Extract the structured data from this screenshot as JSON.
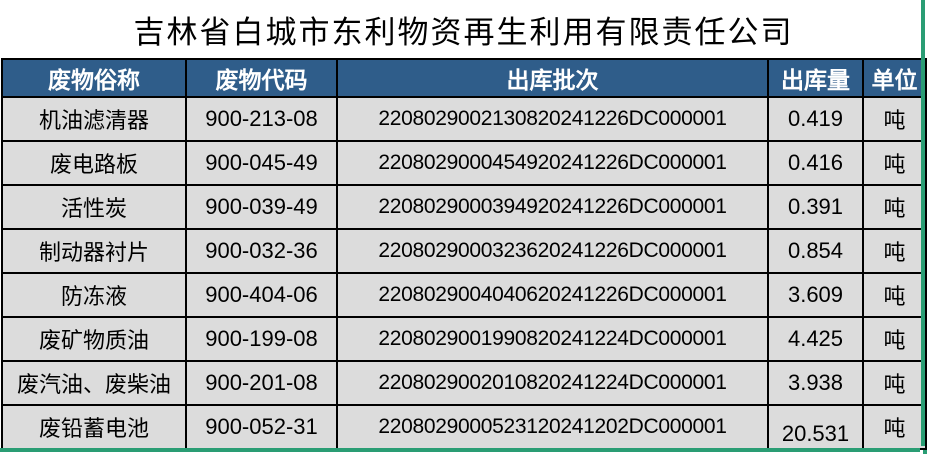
{
  "title": "吉林省白城市东利物资再生利用有限责任公司",
  "table": {
    "headers": [
      "废物俗称",
      "废物代码",
      "出库批次",
      "出库量",
      "单位"
    ],
    "rows": [
      [
        "机油滤清器",
        "900-213-08",
        "2208029002130820241226DC000001",
        "0.419",
        "吨"
      ],
      [
        "废电路板",
        "900-045-49",
        "2208029000454920241226DC000001",
        "0.416",
        "吨"
      ],
      [
        "活性炭",
        "900-039-49",
        "2208029000394920241226DC000001",
        "0.391",
        "吨"
      ],
      [
        "制动器衬片",
        "900-032-36",
        "2208029000323620241226DC000001",
        "0.854",
        "吨"
      ],
      [
        "防冻液",
        "900-404-06",
        "2208029004040620241226DC000001",
        "3.609",
        "吨"
      ],
      [
        "废矿物质油",
        "900-199-08",
        "2208029001990820241224DC000001",
        "4.425",
        "吨"
      ],
      [
        "废汽油、废柴油",
        "900-201-08",
        "2208029002010820241224DC000001",
        "3.938",
        "吨"
      ],
      [
        "废铅蓄电池",
        "900-052-31",
        "2208029000523120241202DC000001",
        "20.531",
        "吨"
      ]
    ]
  },
  "colors": {
    "header_bg": "#2F5D8A",
    "header_text": "#FFFFFF",
    "row_bg": "#DCDCDC",
    "border": "#000000",
    "selection_green": "#2A9D74",
    "title_text": "#000000"
  }
}
